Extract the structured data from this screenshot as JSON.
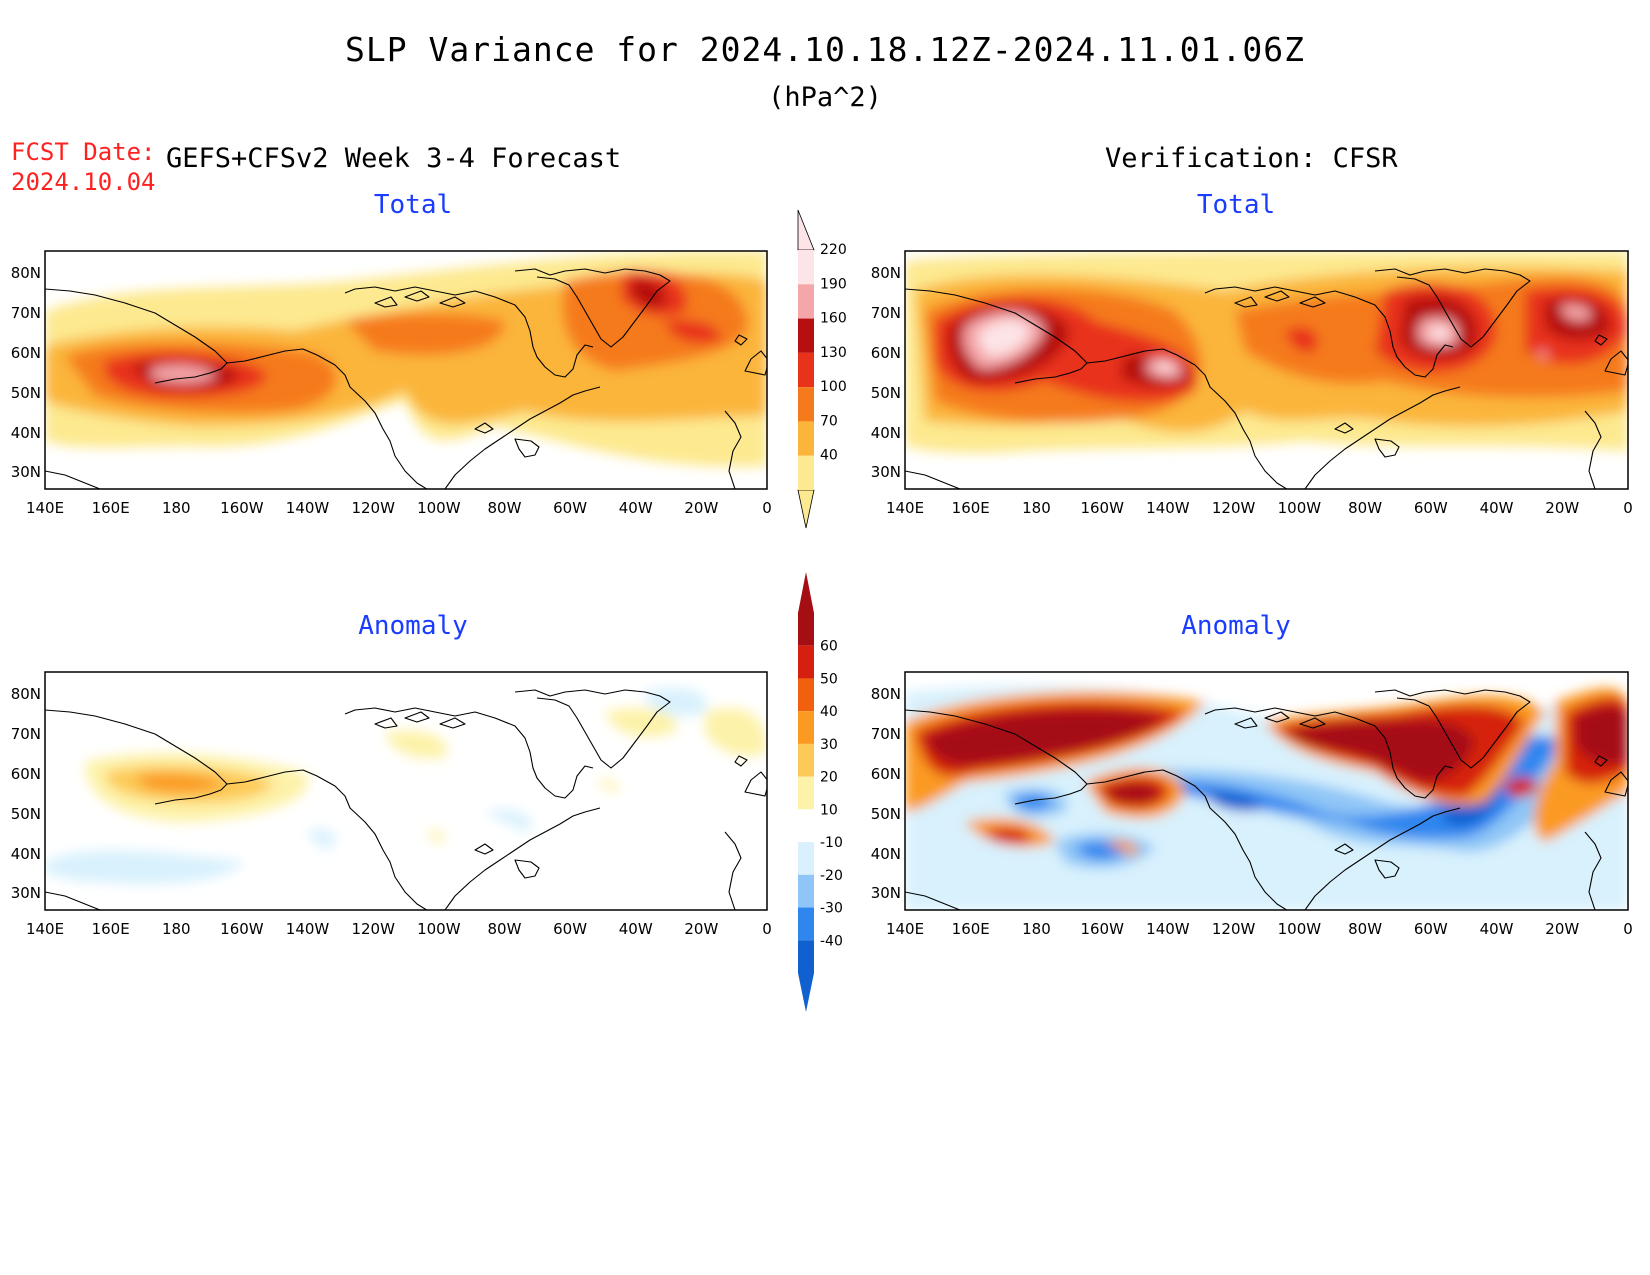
{
  "header": {
    "title": "SLP Variance for 2024.10.18.12Z-2024.11.01.06Z",
    "units": "(hPa^2)",
    "fcst_label": "FCST Date:",
    "fcst_date": "2024.10.04",
    "forecast_heading": "GEFS+CFSv2 Week 3-4 Forecast",
    "verification_heading": "Verification: CFSR"
  },
  "panels": {
    "forecast_total": "Total",
    "verification_total": "Total",
    "forecast_anomaly": "Anomaly",
    "verification_anomaly": "Anomaly"
  },
  "axes": {
    "lat_labels": [
      "80N",
      "70N",
      "60N",
      "50N",
      "40N",
      "30N"
    ],
    "lon_labels": [
      "140E",
      "160E",
      "180",
      "160W",
      "140W",
      "120W",
      "100W",
      "80W",
      "60W",
      "40W",
      "20W",
      "0"
    ]
  },
  "colorbar_total": {
    "labels": [
      "40",
      "70",
      "100",
      "130",
      "160",
      "190",
      "220"
    ],
    "colors": [
      "#fde98f",
      "#fbb53b",
      "#f57a1c",
      "#e8321a",
      "#b50f10",
      "#f5a6a8",
      "#fde4e6"
    ]
  },
  "colorbar_anomaly": {
    "labels": [
      "-40",
      "-30",
      "-20",
      "-10",
      "10",
      "20",
      "30",
      "40",
      "50",
      "60"
    ],
    "colors": [
      "#1060d0",
      "#2f86ef",
      "#8fc6f7",
      "#d8f1fd",
      "#ffffff",
      "#fdf2a9",
      "#fdca57",
      "#fb9a22",
      "#f0600f",
      "#d6200f",
      "#a50e12"
    ]
  }
}
